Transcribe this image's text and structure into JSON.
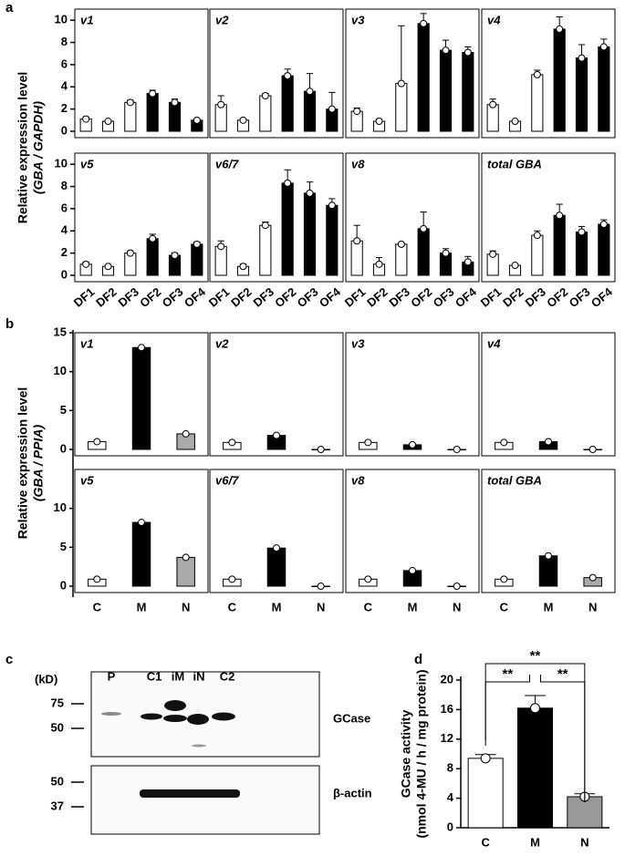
{
  "panel_labels": [
    "a",
    "b",
    "c",
    "d"
  ],
  "panel_a_ylabel": [
    "Relative expression level",
    "(GBA / GAPDH)"
  ],
  "panel_b_ylabel": [
    "Relative expression level",
    "(GBA / PPIA)"
  ],
  "chart_data": [
    {
      "type": "bar",
      "title": "v1",
      "values": [
        1.1,
        0.9,
        2.6,
        3.4,
        2.6,
        1.0
      ],
      "errors": [
        0.2,
        0.1,
        0.2,
        0.3,
        0.3,
        0.1
      ],
      "colors": [
        "#ffffff",
        "#ffffff",
        "#ffffff",
        "#000000",
        "#000000",
        "#000000"
      ],
      "ylim": [
        0,
        11
      ],
      "yticks": [
        0,
        2,
        4,
        6,
        8,
        10
      ]
    },
    {
      "type": "bar",
      "title": "v2",
      "values": [
        2.4,
        1.0,
        3.2,
        5.0,
        3.6,
        2.0
      ],
      "errors": [
        0.8,
        0.1,
        0.2,
        0.6,
        1.6,
        1.5
      ],
      "colors": [
        "#ffffff",
        "#ffffff",
        "#ffffff",
        "#000000",
        "#000000",
        "#000000"
      ],
      "ylim": [
        0,
        11
      ]
    },
    {
      "type": "bar",
      "title": "v3",
      "values": [
        1.8,
        0.9,
        4.3,
        9.7,
        7.3,
        7.1
      ],
      "errors": [
        0.3,
        0.2,
        5.2,
        0.9,
        0.9,
        0.5
      ],
      "colors": [
        "#ffffff",
        "#ffffff",
        "#ffffff",
        "#000000",
        "#000000",
        "#000000"
      ],
      "ylim": [
        0,
        11
      ]
    },
    {
      "type": "bar",
      "title": "v4",
      "values": [
        2.4,
        0.9,
        5.1,
        9.2,
        6.6,
        7.6
      ],
      "errors": [
        0.5,
        0.1,
        0.4,
        1.1,
        1.2,
        0.7
      ],
      "colors": [
        "#ffffff",
        "#ffffff",
        "#ffffff",
        "#000000",
        "#000000",
        "#000000"
      ],
      "ylim": [
        0,
        11
      ]
    },
    {
      "type": "bar",
      "title": "v5",
      "categories": [
        "DF1",
        "DF2",
        "DF3",
        "OF2",
        "OF3",
        "OF4"
      ],
      "values": [
        1.0,
        0.8,
        2.0,
        3.3,
        1.8,
        2.8
      ],
      "errors": [
        0.2,
        0.1,
        0.2,
        0.4,
        0.2,
        0.2
      ],
      "colors": [
        "#ffffff",
        "#ffffff",
        "#ffffff",
        "#000000",
        "#000000",
        "#000000"
      ],
      "ylim": [
        0,
        11
      ],
      "yticks": [
        0,
        2,
        4,
        6,
        8,
        10
      ]
    },
    {
      "type": "bar",
      "title": "v6/7",
      "categories": [
        "DF1",
        "DF2",
        "DF3",
        "OF2",
        "OF3",
        "OF4"
      ],
      "values": [
        2.6,
        0.8,
        4.5,
        8.3,
        7.4,
        6.3
      ],
      "errors": [
        0.5,
        0.2,
        0.3,
        1.2,
        1.0,
        0.6
      ],
      "colors": [
        "#ffffff",
        "#ffffff",
        "#ffffff",
        "#000000",
        "#000000",
        "#000000"
      ],
      "ylim": [
        0,
        11
      ]
    },
    {
      "type": "bar",
      "title": "v8",
      "categories": [
        "DF1",
        "DF2",
        "DF3",
        "OF2",
        "OF3",
        "OF4"
      ],
      "values": [
        3.1,
        1.0,
        2.8,
        4.2,
        2.0,
        1.2
      ],
      "errors": [
        1.4,
        0.6,
        0.1,
        1.5,
        0.4,
        0.5
      ],
      "colors": [
        "#ffffff",
        "#ffffff",
        "#ffffff",
        "#000000",
        "#000000",
        "#000000"
      ],
      "ylim": [
        0,
        11
      ]
    },
    {
      "type": "bar",
      "title": "total GBA",
      "categories": [
        "DF1",
        "DF2",
        "DF3",
        "OF2",
        "OF3",
        "OF4"
      ],
      "values": [
        1.9,
        0.9,
        3.6,
        5.4,
        3.9,
        4.6
      ],
      "errors": [
        0.3,
        0.1,
        0.4,
        1.0,
        0.5,
        0.4
      ],
      "colors": [
        "#ffffff",
        "#ffffff",
        "#ffffff",
        "#000000",
        "#000000",
        "#000000"
      ],
      "ylim": [
        0,
        11
      ]
    },
    {
      "type": "bar",
      "title": "v1",
      "values": [
        1.0,
        13.1,
        2.0
      ],
      "colors": [
        "#ffffff",
        "#000000",
        "#aaaaaa"
      ],
      "ylim": [
        0,
        15
      ],
      "yticks": [
        0,
        5,
        10,
        15
      ]
    },
    {
      "type": "bar",
      "title": "v2",
      "values": [
        0.9,
        1.8,
        0
      ],
      "colors": [
        "#ffffff",
        "#000000",
        "#aaaaaa"
      ],
      "ylim": [
        0,
        15
      ]
    },
    {
      "type": "bar",
      "title": "v3",
      "values": [
        0.9,
        0.6,
        0
      ],
      "colors": [
        "#ffffff",
        "#000000",
        "#aaaaaa"
      ],
      "ylim": [
        0,
        15
      ]
    },
    {
      "type": "bar",
      "title": "v4",
      "values": [
        0.9,
        1.0,
        0
      ],
      "colors": [
        "#ffffff",
        "#000000",
        "#aaaaaa"
      ],
      "ylim": [
        0,
        15
      ]
    },
    {
      "type": "bar",
      "title": "v5",
      "categories": [
        "C",
        "M",
        "N"
      ],
      "values": [
        0.9,
        8.2,
        3.7
      ],
      "colors": [
        "#ffffff",
        "#000000",
        "#aaaaaa"
      ],
      "ylim": [
        0,
        15
      ],
      "yticks": [
        0,
        5,
        10
      ]
    },
    {
      "type": "bar",
      "title": "v6/7",
      "categories": [
        "C",
        "M",
        "N"
      ],
      "values": [
        0.9,
        4.9,
        0
      ],
      "colors": [
        "#ffffff",
        "#000000",
        "#aaaaaa"
      ],
      "ylim": [
        0,
        15
      ]
    },
    {
      "type": "bar",
      "title": "v8",
      "categories": [
        "C",
        "M",
        "N"
      ],
      "values": [
        0.9,
        2.0,
        0
      ],
      "colors": [
        "#ffffff",
        "#000000",
        "#aaaaaa"
      ],
      "ylim": [
        0,
        15
      ]
    },
    {
      "type": "bar",
      "title": "total GBA",
      "categories": [
        "C",
        "M",
        "N"
      ],
      "values": [
        0.9,
        3.9,
        1.1
      ],
      "colors": [
        "#ffffff",
        "#000000",
        "#aaaaaa"
      ],
      "ylim": [
        0,
        15
      ]
    },
    {
      "type": "bar",
      "ylabel": [
        "GCase activity",
        "(nmol 4-MU / h / mg protein)"
      ],
      "categories": [
        "C",
        "M",
        "N"
      ],
      "values": [
        9.4,
        16.2,
        4.2
      ],
      "errors": [
        0.5,
        1.7,
        0.4
      ],
      "colors": [
        "#ffffff",
        "#000000",
        "#999999"
      ],
      "ylim": [
        0,
        20
      ],
      "yticks": [
        0,
        4,
        8,
        12,
        16,
        20
      ],
      "annotations": [
        "**",
        "**",
        "**"
      ]
    }
  ],
  "blot": {
    "unit": "(kD)",
    "lanes": [
      "P",
      "C1",
      "iM",
      "iN",
      "C2"
    ],
    "top_markers": [
      75,
      50
    ],
    "top_label": "GCase",
    "bottom_markers": [
      50,
      37
    ],
    "bottom_label": "β-actin"
  }
}
